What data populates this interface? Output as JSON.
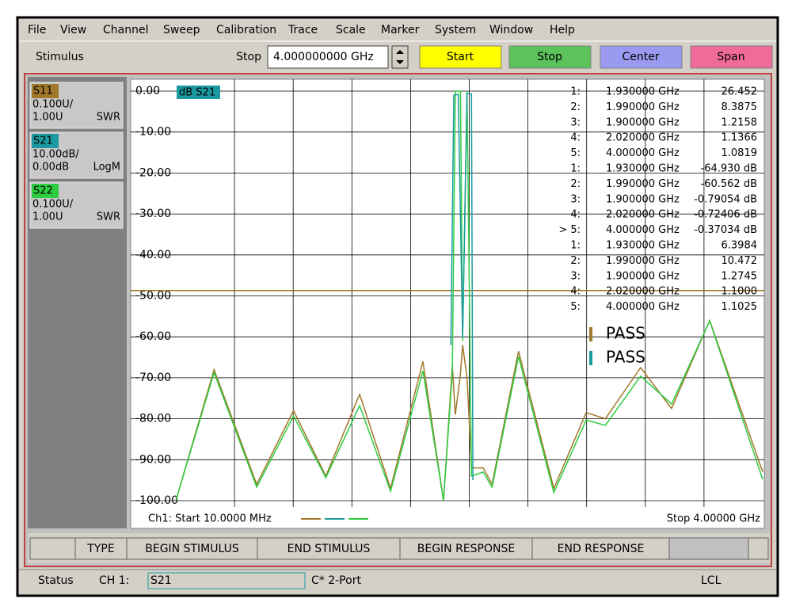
{
  "menu": [
    "File",
    "View",
    "Channel",
    "Sweep",
    "Calibration",
    "Trace",
    "Scale",
    "Marker",
    "System",
    "Window",
    "Help"
  ],
  "toolbar": {
    "label": "Stimulus",
    "field_label": "Stop",
    "field_value": "4.000000000 GHz",
    "buttons": [
      {
        "label": "Start",
        "color": "#ffff00"
      },
      {
        "label": "Stop",
        "color": "#5cc25c"
      },
      {
        "label": "Center",
        "color": "#9a9af0"
      },
      {
        "label": "Span",
        "color": "#f06a9a"
      }
    ]
  },
  "traces": [
    {
      "name": "S11",
      "scale": "0.100U/",
      "ref": "1.00U",
      "format": "SWR",
      "color": "#a0782a"
    },
    {
      "name": "S21",
      "scale": "10.00dB/",
      "ref": "0.00dB",
      "format": "LogM",
      "color": "#1a9aa0"
    },
    {
      "name": "S22",
      "scale": "0.100U/",
      "ref": "1.00U",
      "format": "SWR",
      "color": "#2ecc40"
    }
  ],
  "plot": {
    "trace_label": "dB S21",
    "ylim": [
      -100,
      0
    ],
    "xlim": [
      0.01,
      4
    ],
    "yticks": [
      {
        "value": 0,
        "label": "0.00"
      },
      {
        "value": -10,
        "label": "-10.00"
      },
      {
        "value": -20,
        "label": "-20.00"
      },
      {
        "value": -30,
        "label": "-30.00"
      },
      {
        "value": -40,
        "label": "-40.00"
      },
      {
        "value": -50,
        "label": "-50.00"
      },
      {
        "value": -60,
        "label": "-60.00"
      },
      {
        "value": -70,
        "label": "-70.00"
      },
      {
        "value": -80,
        "label": "-80.00"
      },
      {
        "value": -90,
        "label": "-90.00"
      },
      {
        "value": -100,
        "label": "-100.00"
      }
    ],
    "limit_line": -48.7,
    "curves": [
      {
        "color": "#a0782a",
        "x": [
          0.01,
          0.27,
          0.56,
          0.81,
          1.03,
          1.26,
          1.47,
          1.69,
          1.83,
          1.89,
          1.91,
          1.945,
          1.96,
          1.99,
          2.02,
          2.1,
          2.16,
          2.34,
          2.58,
          2.8,
          2.93,
          3.17,
          3.38,
          3.64,
          4.0
        ],
        "y": [
          -100,
          -68,
          -96,
          -78,
          -94,
          -74,
          -97,
          -66,
          -100,
          -67,
          -79,
          -69,
          -62,
          -70,
          -92,
          -92,
          -96,
          -63.5,
          -97,
          -78.5,
          -80,
          -67.5,
          -77.5,
          -56,
          -93
        ]
      },
      {
        "color": "#2ecc40",
        "x": [
          0.01,
          0.27,
          0.56,
          0.81,
          1.03,
          1.26,
          1.47,
          1.69,
          1.83,
          1.89,
          1.91,
          1.945,
          1.96,
          1.99,
          2.02,
          2.1,
          2.16,
          2.34,
          2.58,
          2.8,
          2.93,
          3.17,
          3.38,
          3.64,
          4.0
        ],
        "y": [
          -100,
          -68.7,
          -96.7,
          -79.3,
          -94.4,
          -76.8,
          -97.7,
          -68.3,
          -100,
          -68.7,
          0,
          0,
          -61,
          0,
          -94,
          -93,
          -96.7,
          -64.8,
          -98,
          -80.3,
          -81.6,
          -69.6,
          -76.4,
          -56.1,
          -94.8
        ]
      },
      {
        "color": "#1a9aa0",
        "x": [
          1.88,
          1.9,
          1.93,
          1.96,
          1.99,
          2.02,
          2.03
        ],
        "y": [
          -62,
          -1,
          -0.8,
          -60,
          -0.6,
          -0.7,
          -95
        ]
      }
    ],
    "markers": [
      [
        [
          "1:",
          "1.930000 GHz",
          "26.452"
        ],
        [
          "2:",
          "1.990000 GHz",
          "8.3875"
        ],
        [
          "3:",
          "1.900000 GHz",
          "1.2158"
        ],
        [
          "4:",
          "2.020000 GHz",
          "1.1366"
        ],
        [
          "5:",
          "4.000000 GHz",
          "1.0819"
        ]
      ],
      [
        [
          "1:",
          "1.930000 GHz",
          "-64.930 dB"
        ],
        [
          "2:",
          "1.990000 GHz",
          "-60.562 dB"
        ],
        [
          "3:",
          "1.900000 GHz",
          "-0.79054 dB"
        ],
        [
          "4:",
          "2.020000 GHz",
          "-0.72406 dB"
        ],
        [
          "> 5:",
          "4.000000 GHz",
          "-0.37034 dB"
        ]
      ],
      [
        [
          "1:",
          "1.930000 GHz",
          "6.3984"
        ],
        [
          "2:",
          "1.990000 GHz",
          "10.472"
        ],
        [
          "3:",
          "1.900000 GHz",
          "1.2745"
        ],
        [
          "4:",
          "2.020000 GHz",
          "1.1000"
        ],
        [
          "5:",
          "4.000000 GHz",
          "1.1025"
        ]
      ]
    ],
    "pass": [
      "PASS",
      "PASS"
    ],
    "start": "Ch1: Start  10.0000 MHz",
    "stop": "Stop  4.00000 GHz"
  },
  "limit_table": [
    "TYPE",
    "BEGIN STIMULUS",
    "END STIMULUS",
    "BEGIN RESPONSE",
    "END RESPONSE"
  ],
  "status": {
    "label": "Status",
    "channel": "CH 1:",
    "param": "S21",
    "cal": "C* 2-Port",
    "mode": "LCL"
  }
}
